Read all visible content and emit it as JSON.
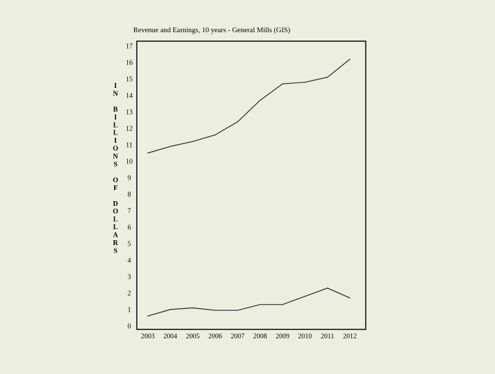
{
  "chart_data": {
    "type": "line",
    "title": "Revenue and Earnings, 10 years - General Mills (GIS)",
    "xlabel": "",
    "ylabel": "IN BILLIONS OF DOLLARS",
    "ylabel_letters": [
      "I",
      "N",
      "",
      "B",
      "I",
      "L",
      "L",
      "I",
      "O",
      "N",
      "S",
      "",
      "O",
      "F",
      "",
      "D",
      "O",
      "L",
      "L",
      "A",
      "R",
      "S"
    ],
    "categories": [
      "2003",
      "2004",
      "2005",
      "2006",
      "2007",
      "2008",
      "2009",
      "2010",
      "2011",
      "2012"
    ],
    "ylim": [
      0,
      17
    ],
    "yticks": [
      "0",
      "1",
      "2",
      "3",
      "4",
      "5",
      "6",
      "7",
      "8",
      "9",
      "10",
      "11",
      "12",
      "13",
      "14",
      "15",
      "16",
      "17"
    ],
    "grid": false,
    "legend": "none",
    "series": [
      {
        "values": [
          10.5,
          10.9,
          11.2,
          11.6,
          12.4,
          13.7,
          14.7,
          14.8,
          15.1,
          16.2
        ]
      },
      {
        "values": [
          0.6,
          1.0,
          1.1,
          0.95,
          0.95,
          1.3,
          1.3,
          1.8,
          2.3,
          1.7
        ]
      }
    ],
    "colors": {
      "background": "#ecefe0",
      "line": "#222222",
      "frame": "#111111"
    }
  }
}
